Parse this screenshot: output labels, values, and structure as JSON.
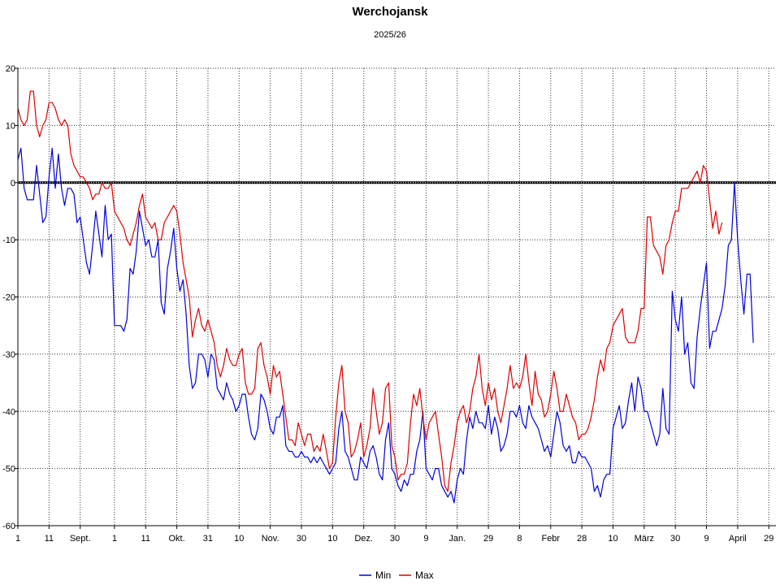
{
  "chart_data": {
    "type": "line",
    "title": "Werchojansk",
    "subtitle": "2025/26",
    "xlabel": "",
    "ylabel": "",
    "ylim": [
      -60,
      20
    ],
    "yticks": [
      20,
      10,
      0,
      -10,
      -20,
      -30,
      -40,
      -50,
      -60
    ],
    "grid": true,
    "legend_position": "bottom-center",
    "x_start": "2025-08-01",
    "xticks": [
      {
        "day": 0,
        "label": "1"
      },
      {
        "day": 10,
        "label": "11"
      },
      {
        "day": 20,
        "label": "Sept."
      },
      {
        "day": 31,
        "label": "1"
      },
      {
        "day": 41,
        "label": "11"
      },
      {
        "day": 51,
        "label": "Okt."
      },
      {
        "day": 61,
        "label": "31"
      },
      {
        "day": 71,
        "label": "10"
      },
      {
        "day": 81,
        "label": "Nov."
      },
      {
        "day": 91,
        "label": "30"
      },
      {
        "day": 101,
        "label": "10"
      },
      {
        "day": 111,
        "label": "Dez."
      },
      {
        "day": 121,
        "label": "30"
      },
      {
        "day": 131,
        "label": "9"
      },
      {
        "day": 141,
        "label": "Jan."
      },
      {
        "day": 151,
        "label": "29"
      },
      {
        "day": 161,
        "label": "8"
      },
      {
        "day": 171,
        "label": "Febr"
      },
      {
        "day": 181,
        "label": "28"
      },
      {
        "day": 191,
        "label": "10"
      },
      {
        "day": 201,
        "label": "März"
      },
      {
        "day": 211,
        "label": "30"
      },
      {
        "day": 221,
        "label": "9"
      },
      {
        "day": 231,
        "label": "April"
      },
      {
        "day": 241,
        "label": "29"
      }
    ],
    "series": [
      {
        "name": "Min",
        "color": "#0000dd",
        "values": [
          4,
          6,
          -1,
          -3,
          -3,
          -3,
          3,
          -2,
          -7,
          -6,
          1,
          6,
          -1,
          5,
          -1,
          -4,
          -1,
          -1,
          -2,
          -7,
          -6,
          -10,
          -14,
          -16,
          -11,
          -5,
          -9,
          -13,
          -4,
          -10,
          -9,
          -25,
          -25,
          -25,
          -26,
          -24,
          -15,
          -16,
          -12,
          -5,
          -8,
          -11,
          -10,
          -13,
          -13,
          -10,
          -21,
          -23,
          -15,
          -12,
          -8,
          -15,
          -19,
          -17,
          -23,
          -32,
          -36,
          -35,
          -30,
          -30,
          -31,
          -34,
          -30,
          -31,
          -36,
          -37,
          -38,
          -35,
          -37,
          -38,
          -40,
          -39,
          -37,
          -37,
          -41,
          -44,
          -45,
          -43,
          -37,
          -38,
          -40,
          -43,
          -44,
          -41,
          -41,
          -39,
          -46,
          -47,
          -47,
          -48,
          -48,
          -47,
          -48,
          -48,
          -49,
          -48,
          -49,
          -48,
          -49,
          -50,
          -51,
          -50,
          -49,
          -43,
          -40,
          -47,
          -48,
          -50,
          -52,
          -52,
          -48,
          -49,
          -50,
          -47,
          -46,
          -48,
          -51,
          -52,
          -45,
          -42,
          -50,
          -51,
          -53,
          -54,
          -52,
          -53,
          -51,
          -51,
          -47,
          -45,
          -40,
          -50,
          -51,
          -52,
          -50,
          -50,
          -53,
          -54,
          -55,
          -54,
          -56,
          -52,
          -50,
          -51,
          -45,
          -41,
          -43,
          -40,
          -42,
          -42,
          -43,
          -39,
          -44,
          -41,
          -43,
          -47,
          -46,
          -44,
          -40,
          -40,
          -41,
          -39,
          -42,
          -43,
          -39,
          -41,
          -42,
          -43,
          -45,
          -47,
          -46,
          -48,
          -44,
          -40,
          -42,
          -46,
          -47,
          -46,
          -49,
          -49,
          -47,
          -48,
          -48,
          -49,
          -50,
          -54,
          -53,
          -55,
          -52,
          -51,
          -51,
          -43,
          -41,
          -39,
          -43,
          -42,
          -38,
          -35,
          -40,
          -34,
          -36,
          -40,
          -40,
          -42,
          -44,
          -46,
          -44,
          -36,
          -43,
          -44,
          -19,
          -24,
          -26,
          -20,
          -30,
          -28,
          -35,
          -36,
          -27,
          -22,
          -18,
          -14,
          -29,
          -26,
          -26,
          -24,
          -22,
          -18,
          -11,
          -10,
          0,
          -10,
          -17,
          -23,
          -16,
          -16,
          -28
        ]
      },
      {
        "name": "Max",
        "color": "#dd0000",
        "values": [
          13,
          11,
          10,
          11,
          16,
          16,
          10,
          8,
          10,
          11,
          14,
          14,
          13,
          11,
          10,
          11,
          10,
          5,
          3,
          2,
          1,
          1,
          0,
          -1,
          -3,
          -2,
          -2,
          0,
          -1,
          -1,
          0,
          -5,
          -6,
          -7,
          -8,
          -10,
          -11,
          -9,
          -7,
          -4,
          -2,
          -6,
          -7,
          -8,
          -7,
          -10,
          -10,
          -7,
          -6,
          -5,
          -4,
          -5,
          -9,
          -14,
          -17,
          -20,
          -27,
          -24,
          -22,
          -25,
          -26,
          -24,
          -26,
          -28,
          -32,
          -34,
          -32,
          -29,
          -31,
          -32,
          -32,
          -30,
          -29,
          -35,
          -37,
          -37,
          -36,
          -29,
          -28,
          -32,
          -34,
          -37,
          -32,
          -34,
          -33,
          -37,
          -41,
          -45,
          -45,
          -46,
          -42,
          -44,
          -46,
          -44,
          -44,
          -47,
          -46,
          -47,
          -44,
          -47,
          -50,
          -49,
          -41,
          -35,
          -32,
          -40,
          -42,
          -48,
          -47,
          -45,
          -42,
          -48,
          -46,
          -43,
          -36,
          -40,
          -44,
          -42,
          -36,
          -35,
          -46,
          -48,
          -52,
          -51,
          -51,
          -49,
          -42,
          -37,
          -39,
          -36,
          -41,
          -45,
          -42,
          -41,
          -40,
          -44,
          -48,
          -53,
          -54,
          -49,
          -46,
          -42,
          -40,
          -39,
          -42,
          -40,
          -36,
          -34,
          -30,
          -36,
          -39,
          -35,
          -38,
          -36,
          -40,
          -42,
          -39,
          -36,
          -32,
          -36,
          -35,
          -36,
          -34,
          -30,
          -35,
          -39,
          -33,
          -37,
          -38,
          -41,
          -40,
          -37,
          -33,
          -36,
          -40,
          -40,
          -37,
          -39,
          -41,
          -42,
          -45,
          -44,
          -44,
          -43,
          -41,
          -38,
          -34,
          -31,
          -33,
          -29,
          -28,
          -25,
          -24,
          -23,
          -22,
          -27,
          -28,
          -28,
          -28,
          -26,
          -22,
          -22,
          -6,
          -6,
          -11,
          -12,
          -13,
          -16,
          -11,
          -10,
          -7,
          -5,
          -5,
          -1,
          -1,
          -1,
          0,
          1,
          2,
          0,
          3,
          2,
          -3,
          -8,
          -5,
          -9,
          -7
        ]
      }
    ]
  }
}
